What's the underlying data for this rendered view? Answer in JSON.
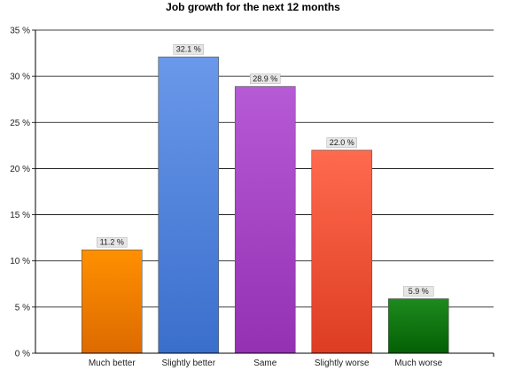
{
  "chart_data": {
    "type": "bar",
    "title": "Job growth for the next 12 months",
    "categories": [
      "Much better",
      "Slightly better",
      "Same",
      "Slightly worse",
      "Much worse"
    ],
    "values": [
      11.2,
      32.1,
      28.9,
      22.0,
      5.9
    ],
    "value_labels": [
      "11.2 %",
      "32.1 %",
      "28.9 %",
      "22.0 %",
      "5.9 %"
    ],
    "ylim": [
      0,
      35
    ],
    "y_ticks": [
      0,
      5,
      10,
      15,
      20,
      25,
      30,
      35
    ],
    "y_tick_labels": [
      "0 %",
      "5 %",
      "10 %",
      "15 %",
      "20 %",
      "25 %",
      "30 %",
      "35 %"
    ],
    "grid": true,
    "colors": [
      {
        "top": "#ff9000",
        "bottom": "#dd6a00"
      },
      {
        "top": "#6a98ea",
        "bottom": "#3a6fcc"
      },
      {
        "top": "#b75ad6",
        "bottom": "#9331b2"
      },
      {
        "top": "#ff6a4e",
        "bottom": "#dd3d22"
      },
      {
        "top": "#1e8a1e",
        "bottom": "#036003"
      }
    ]
  }
}
